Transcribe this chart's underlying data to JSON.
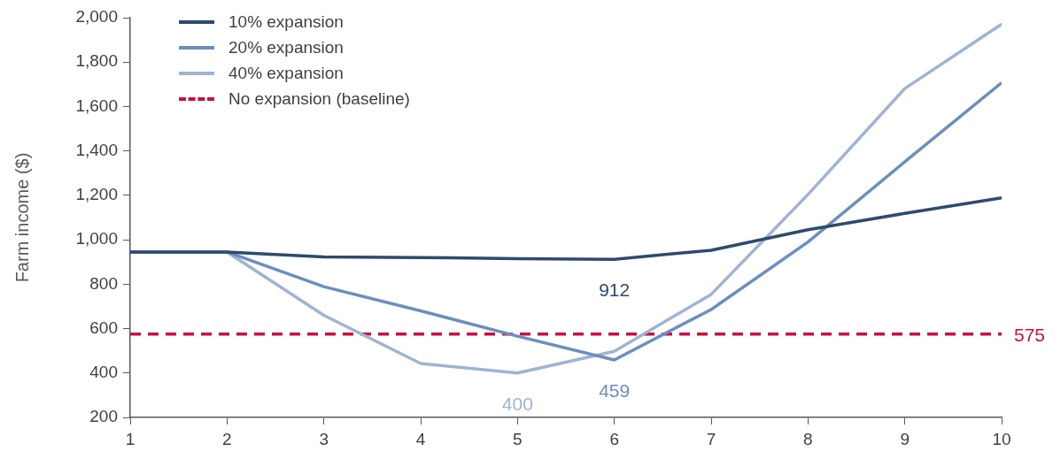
{
  "chart_data": {
    "type": "line",
    "ylabel": "Farm income ($)",
    "x": [
      1,
      2,
      3,
      4,
      5,
      6,
      7,
      8,
      9,
      10
    ],
    "xlim": [
      1,
      10
    ],
    "xticks": [
      1,
      2,
      3,
      4,
      5,
      6,
      7,
      8,
      9,
      10
    ],
    "ylim": [
      200,
      2000
    ],
    "yticks": [
      {
        "value": 200,
        "label": "200"
      },
      {
        "value": 400,
        "label": "400"
      },
      {
        "value": 600,
        "label": "600"
      },
      {
        "value": 800,
        "label": "800"
      },
      {
        "value": 1000,
        "label": "1,000"
      },
      {
        "value": 1200,
        "label": "1,200"
      },
      {
        "value": 1400,
        "label": "1,400"
      },
      {
        "value": 1600,
        "label": "1,600"
      },
      {
        "value": 1800,
        "label": "1,800"
      },
      {
        "value": 2000,
        "label": "2,000"
      }
    ],
    "legend": "top left",
    "series": [
      {
        "name": "10% expansion",
        "color": "#2e4a6e",
        "values": [
          945,
          945,
          923,
          920,
          915,
          912,
          953,
          1045,
          1119,
          1189
        ],
        "value_labels": [
          null,
          null,
          null,
          null,
          null,
          "912",
          null,
          null,
          null,
          null
        ]
      },
      {
        "name": "20% expansion",
        "color": "#6c8ebf",
        "values": [
          945,
          945,
          789,
          680,
          566,
          459,
          686,
          990,
          1351,
          1707
        ],
        "value_labels": [
          null,
          null,
          null,
          null,
          null,
          "459",
          null,
          null,
          null,
          null
        ]
      },
      {
        "name": "40% expansion",
        "color": "#9fb4d3",
        "values": [
          945,
          945,
          660,
          443,
          400,
          498,
          754,
          1204,
          1681,
          1971
        ],
        "value_labels": [
          null,
          null,
          null,
          null,
          "400",
          null,
          null,
          null,
          null,
          null
        ]
      },
      {
        "name": "No expansion (baseline)",
        "color": "#c8103e",
        "line_style": "dashed",
        "values": [
          575,
          575,
          575,
          575,
          575,
          575,
          575,
          575,
          575,
          575
        ],
        "value_labels": [
          null,
          null,
          null,
          null,
          null,
          null,
          null,
          null,
          null,
          "575"
        ]
      }
    ]
  }
}
